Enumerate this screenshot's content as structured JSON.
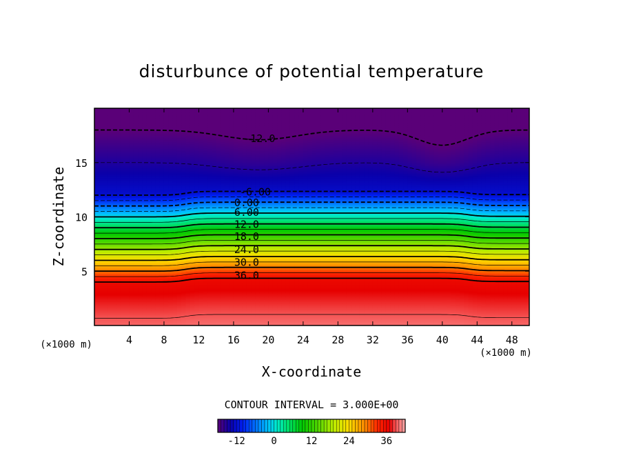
{
  "chart_data": {
    "type": "heatmap",
    "title": "disturbunce of potential temperature",
    "xlabel": "X-coordinate",
    "ylabel": "Z-coordinate",
    "x_unit": "(×1000 m)",
    "y_unit": "(×1000 m)",
    "xlim": [
      0,
      50
    ],
    "ylim": [
      0,
      20
    ],
    "x_ticks": [
      4,
      8,
      12,
      16,
      20,
      24,
      28,
      32,
      36,
      40,
      44,
      48
    ],
    "y_ticks": [
      5,
      10,
      15
    ],
    "contour_interval_text": "CONTOUR INTERVAL = 3.000E+00",
    "contour_labels": [
      {
        "text": "-12.0",
        "x": 19,
        "z": 17.2
      },
      {
        "text": "-6.00",
        "x": 18.5,
        "z": 12.3
      },
      {
        "text": "0.00",
        "x": 17.5,
        "z": 11.3
      },
      {
        "text": "6.00",
        "x": 17.5,
        "z": 10.4
      },
      {
        "text": "12.0",
        "x": 17.5,
        "z": 9.3
      },
      {
        "text": "18.0",
        "x": 17.5,
        "z": 8.2
      },
      {
        "text": "24.0",
        "x": 17.5,
        "z": 7.0
      },
      {
        "text": "30.0",
        "x": 17.5,
        "z": 5.8
      },
      {
        "text": "36.0",
        "x": 17.5,
        "z": 4.6
      }
    ],
    "colorbar": {
      "min": -18,
      "max": 42,
      "tick_values": [
        -12,
        0,
        12,
        24,
        36
      ],
      "tick_labels": [
        "-12",
        "0",
        "12",
        "24",
        "36"
      ]
    }
  }
}
